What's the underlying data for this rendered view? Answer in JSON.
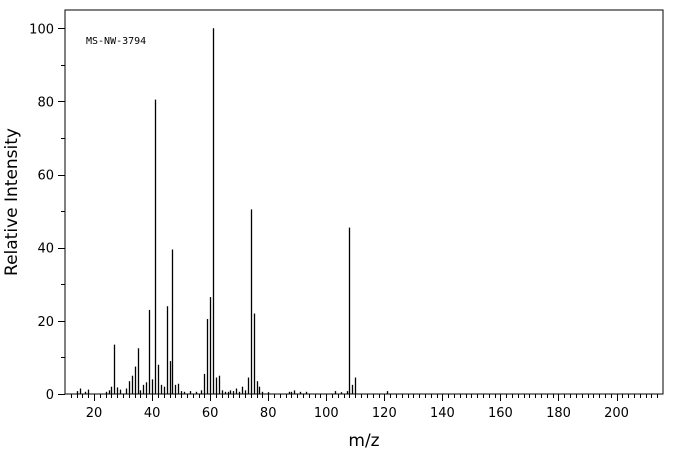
{
  "chart_data": {
    "type": "bar",
    "title": "",
    "annotation": "MS-NW-3794",
    "xlabel": "m/z",
    "ylabel": "Relative Intensity",
    "xlim": [
      10,
      216
    ],
    "ylim": [
      0,
      105
    ],
    "x_ticks": [
      20,
      40,
      60,
      80,
      100,
      120,
      140,
      160,
      180,
      200
    ],
    "y_ticks": [
      0,
      20,
      40,
      60,
      80,
      100
    ],
    "grid": false,
    "colors": {
      "bars": "#000000",
      "axes": "#000000",
      "background": "#ffffff"
    },
    "peaks": [
      {
        "x": 14,
        "y": 0.8
      },
      {
        "x": 15,
        "y": 1.5
      },
      {
        "x": 17,
        "y": 0.6
      },
      {
        "x": 18,
        "y": 1.2
      },
      {
        "x": 24,
        "y": 0.6
      },
      {
        "x": 25,
        "y": 1.0
      },
      {
        "x": 26,
        "y": 2.0
      },
      {
        "x": 27,
        "y": 13.5
      },
      {
        "x": 28,
        "y": 1.8
      },
      {
        "x": 29,
        "y": 1.2
      },
      {
        "x": 31,
        "y": 1.5
      },
      {
        "x": 32,
        "y": 3.5
      },
      {
        "x": 33,
        "y": 5.0
      },
      {
        "x": 34,
        "y": 7.5
      },
      {
        "x": 35,
        "y": 12.5
      },
      {
        "x": 36,
        "y": 1.0
      },
      {
        "x": 37,
        "y": 2.5
      },
      {
        "x": 38,
        "y": 3.2
      },
      {
        "x": 39,
        "y": 23.0
      },
      {
        "x": 40,
        "y": 4.0
      },
      {
        "x": 41,
        "y": 80.5
      },
      {
        "x": 42,
        "y": 8.0
      },
      {
        "x": 43,
        "y": 2.5
      },
      {
        "x": 44,
        "y": 2.0
      },
      {
        "x": 45,
        "y": 24.0
      },
      {
        "x": 46,
        "y": 9.0
      },
      {
        "x": 47,
        "y": 39.5
      },
      {
        "x": 48,
        "y": 2.5
      },
      {
        "x": 49,
        "y": 2.8
      },
      {
        "x": 50,
        "y": 0.8
      },
      {
        "x": 51,
        "y": 0.6
      },
      {
        "x": 53,
        "y": 0.8
      },
      {
        "x": 55,
        "y": 0.6
      },
      {
        "x": 57,
        "y": 1.0
      },
      {
        "x": 58,
        "y": 5.5
      },
      {
        "x": 59,
        "y": 20.5
      },
      {
        "x": 60,
        "y": 26.5
      },
      {
        "x": 61,
        "y": 100
      },
      {
        "x": 62,
        "y": 4.5
      },
      {
        "x": 63,
        "y": 5.0
      },
      {
        "x": 64,
        "y": 1.0
      },
      {
        "x": 65,
        "y": 0.6
      },
      {
        "x": 66,
        "y": 0.6
      },
      {
        "x": 67,
        "y": 1.0
      },
      {
        "x": 68,
        "y": 0.8
      },
      {
        "x": 69,
        "y": 1.5
      },
      {
        "x": 70,
        "y": 0.6
      },
      {
        "x": 71,
        "y": 2.0
      },
      {
        "x": 72,
        "y": 1.0
      },
      {
        "x": 73,
        "y": 4.5
      },
      {
        "x": 74,
        "y": 50.5
      },
      {
        "x": 75,
        "y": 22.0
      },
      {
        "x": 76,
        "y": 3.5
      },
      {
        "x": 77,
        "y": 2.0
      },
      {
        "x": 78,
        "y": 0.6
      },
      {
        "x": 80,
        "y": 0.5
      },
      {
        "x": 87,
        "y": 0.6
      },
      {
        "x": 88,
        "y": 0.6
      },
      {
        "x": 89,
        "y": 1.0
      },
      {
        "x": 91,
        "y": 0.6
      },
      {
        "x": 93,
        "y": 0.6
      },
      {
        "x": 103,
        "y": 0.8
      },
      {
        "x": 105,
        "y": 0.5
      },
      {
        "x": 107,
        "y": 0.8
      },
      {
        "x": 108,
        "y": 45.5
      },
      {
        "x": 109,
        "y": 2.5
      },
      {
        "x": 110,
        "y": 4.5
      },
      {
        "x": 121,
        "y": 0.8
      }
    ]
  }
}
